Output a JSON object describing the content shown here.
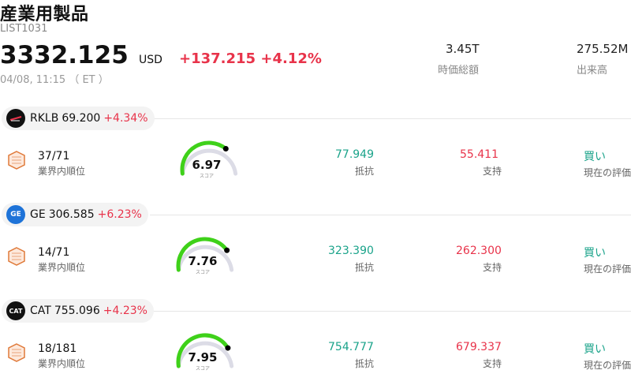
{
  "header": {
    "title": "産業用製品",
    "code": "LIST1031",
    "price": "3332.125",
    "currency": "USD",
    "change": "+137.215",
    "change_pct": "+4.12%",
    "time": "04/08, 11:15 （ ET ）",
    "market_cap_value": "3.45T",
    "market_cap_label": "時価総額",
    "volume_value": "275.52M",
    "volume_label": "出来高"
  },
  "labels": {
    "rank": "業界内順位",
    "score": "スコア",
    "resistance": "抵抗",
    "support": "支持",
    "rating": "現在の評価"
  },
  "stocks": [
    {
      "symbol": "RKLB",
      "price": "69.200",
      "change_pct": "+4.34%",
      "logo_icon": "rocketlab-logo-icon",
      "logo_color": "#111111",
      "rank": "37/71",
      "score": "6.97",
      "score_value": 6.97,
      "resistance": "77.949",
      "support": "55.411",
      "rating": "買い"
    },
    {
      "symbol": "GE",
      "price": "306.585",
      "change_pct": "+6.23%",
      "logo_icon": "ge-logo-icon",
      "logo_color": "#1e73d8",
      "rank": "14/71",
      "score": "7.76",
      "score_value": 7.76,
      "resistance": "323.390",
      "support": "262.300",
      "rating": "買い"
    },
    {
      "symbol": "CAT",
      "price": "755.096",
      "change_pct": "+4.23%",
      "logo_icon": "cat-logo-icon",
      "logo_color": "#111111",
      "logo_text": "CAT",
      "rank": "18/181",
      "score": "7.95",
      "score_value": 7.95,
      "resistance": "754.777",
      "support": "679.337",
      "rating": "買い"
    }
  ],
  "colors": {
    "up": "#e8334a",
    "teal": "#1aa38a",
    "gauge_green": "#3fd11a",
    "gauge_track": "#dcdce6"
  }
}
